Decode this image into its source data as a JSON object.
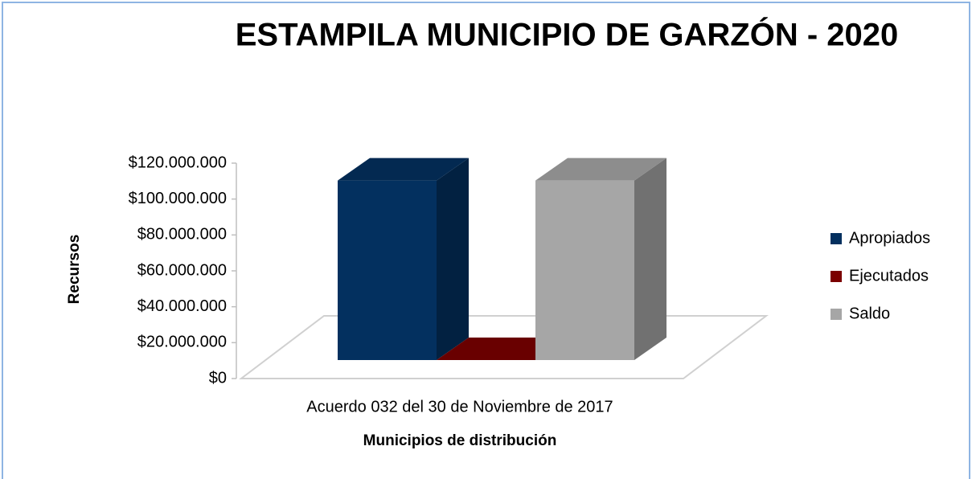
{
  "chart_data": {
    "type": "bar3d",
    "title": "ESTAMPILA MUNICIPIO DE GARZÓN - 2020",
    "categories": [
      "Acuerdo 032 del 30 de Noviembre de 2017"
    ],
    "series": [
      {
        "name": "Apropiados",
        "color": "#03305f",
        "values": [
          100000000
        ]
      },
      {
        "name": "Ejecutados",
        "color": "#7b0000",
        "values": [
          0
        ]
      },
      {
        "name": "Saldo",
        "color": "#a6a6a6",
        "values": [
          100000000
        ]
      }
    ],
    "ylabel": "Recursos",
    "xlabel": "Municipios de distribución",
    "ylim": [
      0,
      120000000
    ],
    "yticks": [
      {
        "value": 0,
        "label": "$0"
      },
      {
        "value": 20000000,
        "label": "$20.000.000"
      },
      {
        "value": 40000000,
        "label": "$40.000.000"
      },
      {
        "value": 60000000,
        "label": "$60.000.000"
      },
      {
        "value": 80000000,
        "label": "$80.000.000"
      },
      {
        "value": 100000000,
        "label": "$100.000.000"
      },
      {
        "value": 120000000,
        "label": "$120.000.000"
      }
    ],
    "legend": "right"
  }
}
